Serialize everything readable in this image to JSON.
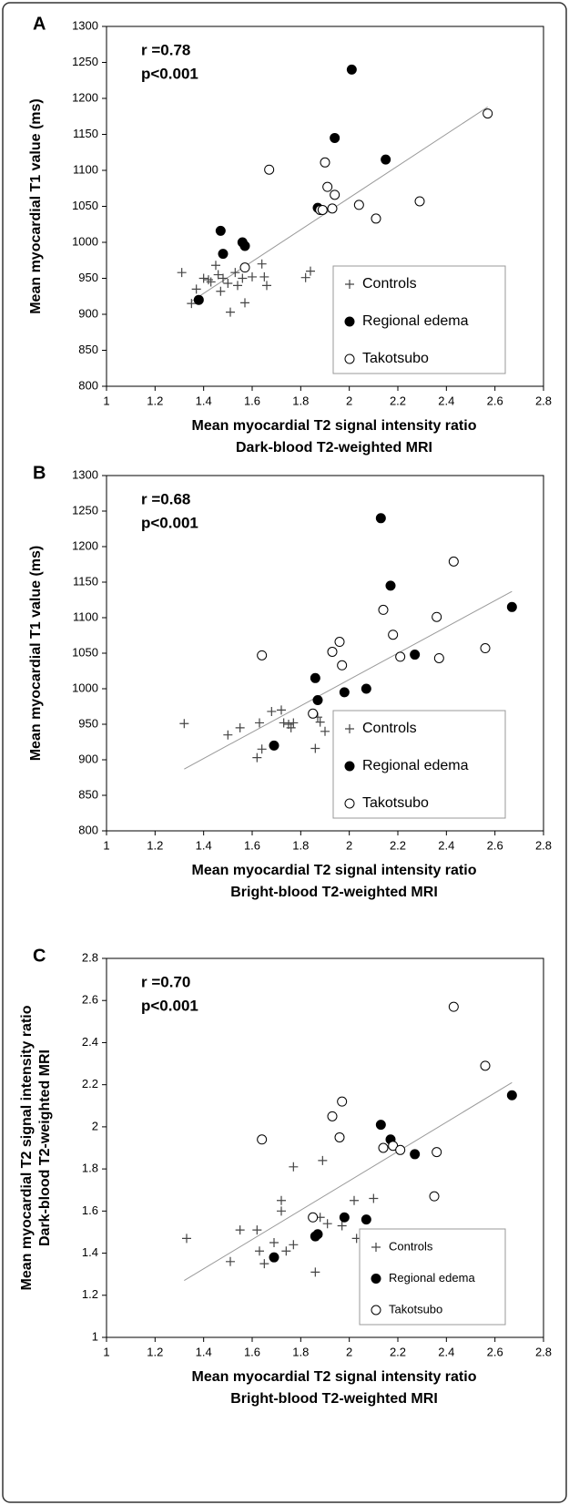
{
  "chart_data": [
    {
      "type": "scatter",
      "panel": "A",
      "annotations": [
        "r =0.78",
        "p<0.001"
      ],
      "xlabel": [
        "Mean myocardial T2 signal intensity ratio",
        "Dark-blood T2-weighted MRI"
      ],
      "ylabel": [
        "Mean myocardial T1 value (ms)"
      ],
      "xlim": [
        1,
        2.8
      ],
      "xticks": [
        1,
        1.2,
        1.4,
        1.6,
        1.8,
        2,
        2.2,
        2.4,
        2.6,
        2.8
      ],
      "ylim": [
        800,
        1300
      ],
      "yticks": [
        800,
        850,
        900,
        950,
        1000,
        1050,
        1100,
        1150,
        1200,
        1250,
        1300
      ],
      "legend": "lower right",
      "series": [
        {
          "name": "Controls",
          "marker": "plus",
          "color": "#000000",
          "x": [
            1.31,
            1.35,
            1.37,
            1.4,
            1.42,
            1.43,
            1.45,
            1.46,
            1.47,
            1.48,
            1.5,
            1.51,
            1.53,
            1.54,
            1.56,
            1.57,
            1.6,
            1.64,
            1.65,
            1.66,
            1.82,
            1.84
          ],
          "values": [
            958,
            915,
            935,
            950,
            948,
            945,
            968,
            955,
            932,
            950,
            943,
            903,
            958,
            940,
            950,
            916,
            952,
            970,
            952,
            940,
            951,
            960
          ]
        },
        {
          "name": "Regional edema",
          "marker": "filled",
          "color": "#000000",
          "x": [
            1.38,
            1.47,
            1.48,
            1.56,
            1.57,
            1.87,
            1.94,
            2.01,
            2.15
          ],
          "values": [
            920,
            1016,
            984,
            1000,
            995,
            1048,
            1145,
            1240,
            1115
          ]
        },
        {
          "name": "Takotsubo",
          "marker": "open",
          "color": "#000000",
          "x": [
            1.57,
            1.67,
            1.88,
            1.89,
            1.9,
            1.91,
            1.93,
            1.94,
            2.04,
            2.11,
            2.29,
            2.57
          ],
          "values": [
            965,
            1101,
            1045,
            1045,
            1111,
            1077,
            1047,
            1066,
            1052,
            1033,
            1057,
            1179
          ]
        }
      ],
      "trendline": {
        "color": "#999999",
        "x": [
          1.35,
          2.57
        ],
        "values": [
          918,
          1188
        ]
      }
    },
    {
      "type": "scatter",
      "panel": "B",
      "annotations": [
        "r =0.68",
        "p<0.001"
      ],
      "xlabel": [
        "Mean myocardial T2 signal intensity ratio",
        "Bright-blood T2-weighted MRI"
      ],
      "ylabel": [
        "Mean myocardial T1 value (ms)"
      ],
      "xlim": [
        1,
        2.8
      ],
      "xticks": [
        1,
        1.2,
        1.4,
        1.6,
        1.8,
        2,
        2.2,
        2.4,
        2.6,
        2.8
      ],
      "ylim": [
        800,
        1300
      ],
      "yticks": [
        800,
        850,
        900,
        950,
        1000,
        1050,
        1100,
        1150,
        1200,
        1250,
        1300
      ],
      "legend": "lower right",
      "series": [
        {
          "name": "Controls",
          "marker": "plus",
          "color": "#000000",
          "x": [
            1.32,
            1.5,
            1.55,
            1.62,
            1.63,
            1.64,
            1.68,
            1.72,
            1.73,
            1.75,
            1.76,
            1.77,
            1.86,
            1.87,
            1.88,
            1.9,
            1.97,
            2.02,
            2.03,
            2.1
          ],
          "values": [
            951,
            935,
            945,
            903,
            952,
            915,
            968,
            970,
            952,
            950,
            945,
            952,
            916,
            960,
            953,
            940,
            955,
            952,
            931,
            940
          ]
        },
        {
          "name": "Regional edema",
          "marker": "filled",
          "color": "#000000",
          "x": [
            1.69,
            1.86,
            1.87,
            1.98,
            2.07,
            2.13,
            2.17,
            2.27,
            2.67
          ],
          "values": [
            920,
            1015,
            984,
            995,
            1000,
            1240,
            1145,
            1048,
            1115
          ]
        },
        {
          "name": "Takotsubo",
          "marker": "open",
          "color": "#000000",
          "x": [
            1.64,
            1.85,
            1.93,
            1.96,
            1.97,
            2.14,
            2.18,
            2.21,
            2.36,
            2.37,
            2.43,
            2.56
          ],
          "values": [
            1047,
            965,
            1052,
            1066,
            1033,
            1111,
            1076,
            1045,
            1101,
            1043,
            1179,
            1057
          ]
        }
      ],
      "trendline": {
        "color": "#999999",
        "x": [
          1.32,
          2.67
        ],
        "values": [
          887,
          1137
        ]
      }
    },
    {
      "type": "scatter",
      "panel": "C",
      "annotations": [
        "r =0.70",
        "p<0.001"
      ],
      "xlabel": [
        "Mean myocardial T2 signal intensity ratio",
        "Bright-blood T2-weighted MRI"
      ],
      "ylabel": [
        "Mean myocardial T2 signal intensity ratio",
        "Dark-blood T2-weighted MRI"
      ],
      "xlim": [
        1,
        2.8
      ],
      "xticks": [
        1,
        1.2,
        1.4,
        1.6,
        1.8,
        2,
        2.2,
        2.4,
        2.6,
        2.8
      ],
      "ylim": [
        1,
        2.8
      ],
      "yticks": [
        1,
        1.2,
        1.4,
        1.6,
        1.8,
        2,
        2.2,
        2.4,
        2.6,
        2.8
      ],
      "legend": "lower right",
      "series": [
        {
          "name": "Controls",
          "marker": "plus",
          "color": "#000000",
          "x": [
            1.33,
            1.51,
            1.55,
            1.62,
            1.63,
            1.65,
            1.69,
            1.72,
            1.72,
            1.74,
            1.77,
            1.77,
            1.86,
            1.87,
            1.88,
            1.89,
            1.91,
            1.97,
            2.02,
            2.03,
            2.1
          ],
          "values": [
            1.47,
            1.36,
            1.51,
            1.51,
            1.41,
            1.35,
            1.45,
            1.65,
            1.6,
            1.41,
            1.44,
            1.81,
            1.31,
            1.48,
            1.57,
            1.84,
            1.54,
            1.53,
            1.65,
            1.47,
            1.66
          ]
        },
        {
          "name": "Regional edema",
          "marker": "filled",
          "color": "#000000",
          "x": [
            1.69,
            1.86,
            1.87,
            1.98,
            2.07,
            2.13,
            2.17,
            2.27,
            2.67
          ],
          "values": [
            1.38,
            1.48,
            1.49,
            1.57,
            1.56,
            2.01,
            1.94,
            1.87,
            2.15
          ]
        },
        {
          "name": "Takotsubo",
          "marker": "open",
          "color": "#000000",
          "x": [
            1.64,
            1.85,
            1.93,
            1.96,
            1.97,
            2.14,
            2.18,
            2.21,
            2.35,
            2.36,
            2.43,
            2.56
          ],
          "values": [
            1.94,
            1.57,
            2.05,
            1.95,
            2.12,
            1.9,
            1.91,
            1.89,
            1.67,
            1.88,
            2.57,
            2.29
          ]
        }
      ],
      "trendline": {
        "color": "#999999",
        "x": [
          1.32,
          2.67
        ],
        "values": [
          1.27,
          2.21
        ]
      }
    }
  ]
}
